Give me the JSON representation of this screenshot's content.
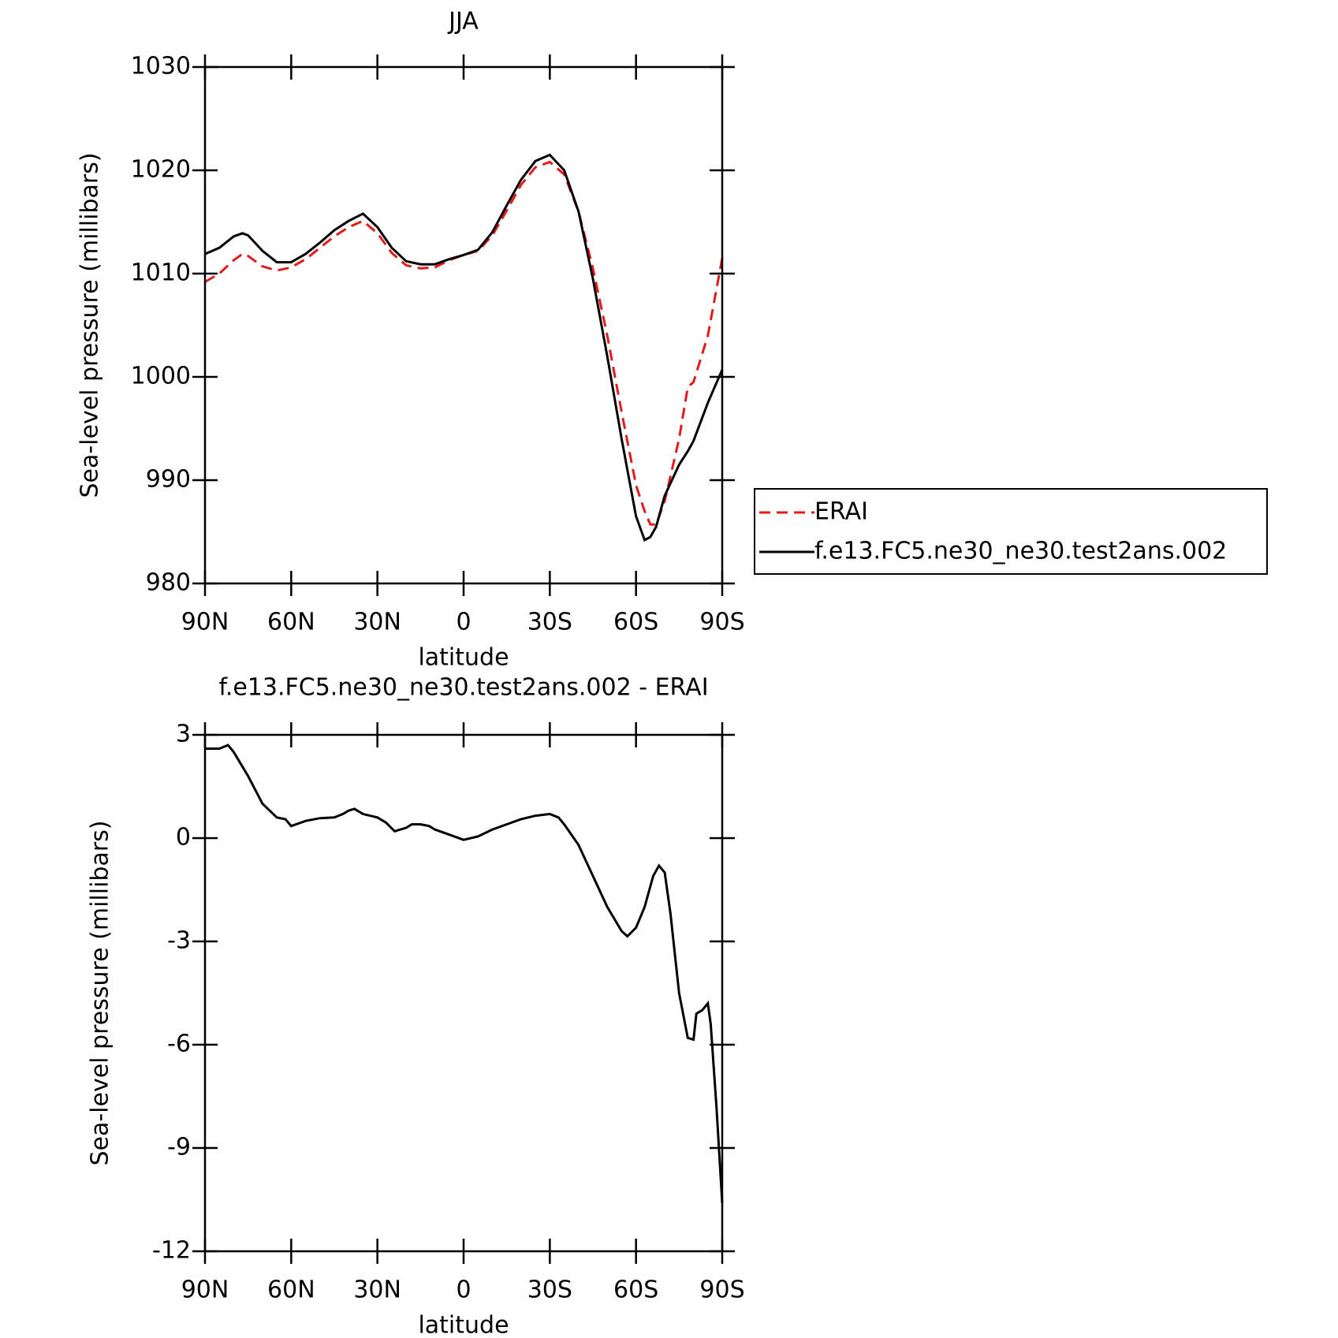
{
  "chart_data": [
    {
      "type": "line",
      "title": "JJA",
      "xlabel": "latitude",
      "ylabel": "Sea-level pressure (millibars)",
      "x": [
        90,
        85,
        80,
        77,
        75,
        70,
        65,
        60,
        55,
        50,
        45,
        40,
        35,
        30,
        25,
        20,
        15,
        10,
        5,
        0,
        -5,
        -10,
        -15,
        -20,
        -25,
        -30,
        -35,
        -40,
        -45,
        -50,
        -55,
        -60,
        -63,
        -65,
        -67,
        -70,
        -75,
        -78,
        -80,
        -85,
        -90
      ],
      "series": [
        {
          "name": "ERAI",
          "color": "#e41a1c",
          "line_style": "dashed",
          "values": [
            1009.2,
            1010.0,
            1011.3,
            1011.9,
            1011.7,
            1010.7,
            1010.3,
            1010.6,
            1011.4,
            1012.5,
            1013.6,
            1014.5,
            1015.1,
            1013.9,
            1012.0,
            1010.8,
            1010.5,
            1010.6,
            1011.3,
            1011.8,
            1012.2,
            1013.7,
            1016.1,
            1018.6,
            1020.3,
            1020.8,
            1019.6,
            1016.0,
            1010.5,
            1004,
            996.6,
            989.5,
            987.0,
            985.7,
            985.7,
            988.0,
            994.0,
            999.0,
            999.5,
            1004.0,
            1011.5
          ]
        },
        {
          "name": "f.e13.FC5.ne30_ne30.test2ans.002",
          "color": "#000000",
          "line_style": "solid",
          "values": [
            1011.9,
            1012.5,
            1013.6,
            1013.9,
            1013.7,
            1012.2,
            1011.1,
            1011.1,
            1011.9,
            1013.0,
            1014.2,
            1015.1,
            1015.8,
            1014.5,
            1012.5,
            1011.2,
            1010.9,
            1010.9,
            1011.4,
            1011.8,
            1012.3,
            1014.0,
            1016.6,
            1019.1,
            1020.9,
            1021.5,
            1020.0,
            1016.0,
            1009.5,
            1002,
            994.0,
            986.5,
            984.2,
            984.5,
            985.5,
            988.5,
            991.5,
            992.8,
            993.8,
            997.5,
            1000.7
          ]
        }
      ],
      "xlim": [
        90,
        -90
      ],
      "xticks": [
        {
          "value": 90,
          "label": "90N"
        },
        {
          "value": 60,
          "label": "60N"
        },
        {
          "value": 30,
          "label": "30N"
        },
        0,
        {
          "value": -30,
          "label": "30S"
        },
        {
          "value": -60,
          "label": "60S"
        },
        {
          "value": -90,
          "label": "90S"
        }
      ],
      "ylim": [
        980,
        1030
      ],
      "yticks": [
        980,
        990,
        1000,
        1010,
        1020,
        1030
      ],
      "legend": "right"
    },
    {
      "type": "line",
      "title": "f.e13.FC5.ne30_ne30.test2ans.002 - ERAI",
      "xlabel": "latitude",
      "ylabel": "Sea-level pressure (millibars)",
      "x": [
        90,
        85,
        82,
        80,
        75,
        70,
        65,
        62,
        60,
        55,
        50,
        45,
        42,
        40,
        38,
        35,
        30,
        27,
        24,
        20,
        18,
        15,
        12,
        10,
        5,
        0,
        -5,
        -10,
        -15,
        -20,
        -25,
        -30,
        -33,
        -35,
        -40,
        -45,
        -50,
        -55,
        -57,
        -60,
        -63,
        -66,
        -68,
        -70,
        -72,
        -75,
        -78,
        -80,
        -81,
        -83,
        -85,
        -86,
        -88,
        -90
      ],
      "series": [
        {
          "color": "#000000",
          "line_style": "solid",
          "values": [
            2.6,
            2.6,
            2.7,
            2.5,
            1.8,
            1.0,
            0.6,
            0.55,
            0.35,
            0.5,
            0.58,
            0.6,
            0.7,
            0.8,
            0.85,
            0.7,
            0.6,
            0.45,
            0.2,
            0.3,
            0.4,
            0.4,
            0.35,
            0.25,
            0.1,
            -0.05,
            0.05,
            0.25,
            0.4,
            0.55,
            0.65,
            0.7,
            0.6,
            0.4,
            -0.2,
            -1.1,
            -2.0,
            -2.7,
            -2.85,
            -2.6,
            -2.0,
            -1.1,
            -0.8,
            -1.0,
            -2.2,
            -4.5,
            -5.8,
            -5.85,
            -5.1,
            -5.0,
            -4.8,
            -5.4,
            -7.8,
            -10.6
          ]
        }
      ],
      "xlim": [
        90,
        -90
      ],
      "xticks": [
        {
          "value": 90,
          "label": "90N"
        },
        {
          "value": 60,
          "label": "60N"
        },
        {
          "value": 30,
          "label": "30N"
        },
        0,
        {
          "value": -30,
          "label": "30S"
        },
        {
          "value": -60,
          "label": "60S"
        },
        {
          "value": -90,
          "label": "90S"
        }
      ],
      "ylim": [
        -12,
        3
      ],
      "yticks": [
        -12,
        -9,
        -6,
        -3,
        0,
        3
      ]
    }
  ]
}
